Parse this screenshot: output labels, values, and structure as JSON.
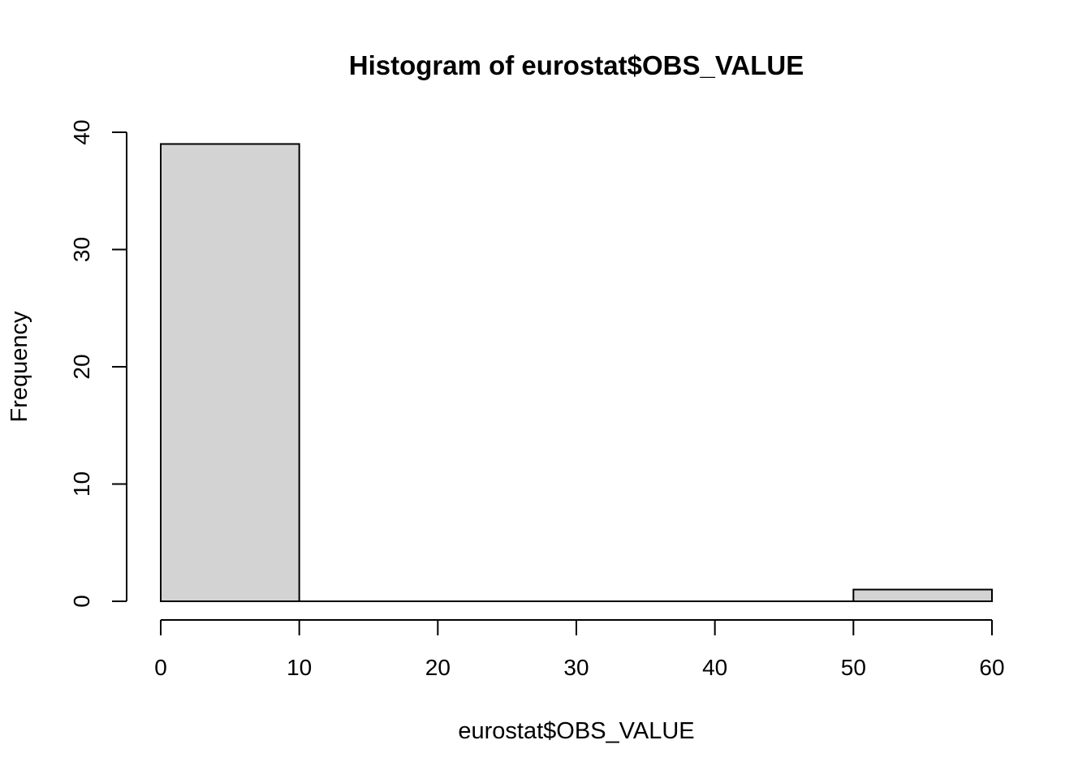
{
  "figure": {
    "kind": "R base-graphics histogram"
  },
  "colors": {
    "background": "#ffffff",
    "bar_fill": "#d3d3d3",
    "bar_border": "#000000",
    "axis": "#000000",
    "text": "#000000"
  },
  "chart_data": {
    "type": "bar",
    "subtype": "histogram",
    "title": "Histogram of eurostat$OBS_VALUE",
    "xlabel": "eurostat$OBS_VALUE",
    "ylabel": "Frequency",
    "bin_edges": [
      0,
      10,
      20,
      30,
      40,
      50,
      60
    ],
    "counts": [
      39,
      0,
      0,
      0,
      0,
      1
    ],
    "x_ticks": [
      "0",
      "10",
      "20",
      "30",
      "40",
      "50",
      "60"
    ],
    "x_tick_values": [
      0,
      10,
      20,
      30,
      40,
      50,
      60
    ],
    "y_ticks": [
      "0",
      "10",
      "20",
      "30",
      "40"
    ],
    "y_tick_values": [
      0,
      10,
      20,
      30,
      40
    ],
    "xlim": [
      0,
      60
    ],
    "ylim": [
      0,
      40
    ],
    "grid": false,
    "legend": "none",
    "y_tick_label_orientation": "rotated-90"
  }
}
